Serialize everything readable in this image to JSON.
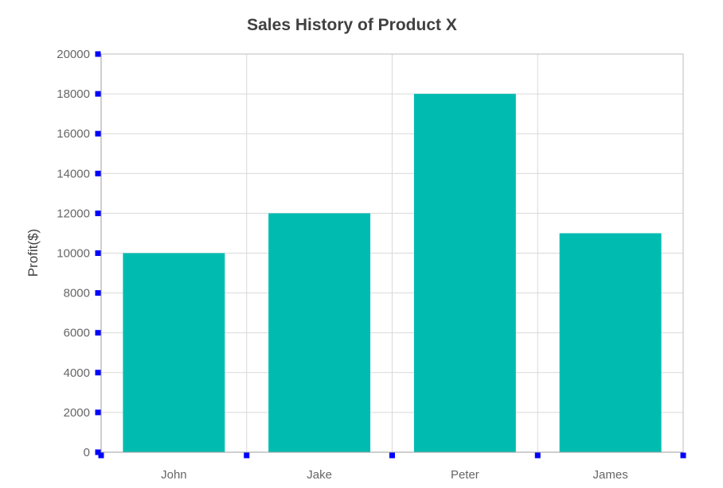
{
  "chart_data": {
    "type": "bar",
    "title": "Sales History of Product X",
    "xlabel": "",
    "ylabel": "Profit($)",
    "categories": [
      "John",
      "Jake",
      "Peter",
      "James"
    ],
    "values": [
      10000,
      12000,
      18000,
      11000
    ],
    "ylim": [
      0,
      20000
    ],
    "y_ticks": [
      "0",
      "2000",
      "4000",
      "6000",
      "8000",
      "10000",
      "12000",
      "14000",
      "16000",
      "18000",
      "20000"
    ],
    "grid": true,
    "legend": "none",
    "colors": {
      "bar": "#00BCB0",
      "tick_marker": "#0000FF"
    }
  }
}
